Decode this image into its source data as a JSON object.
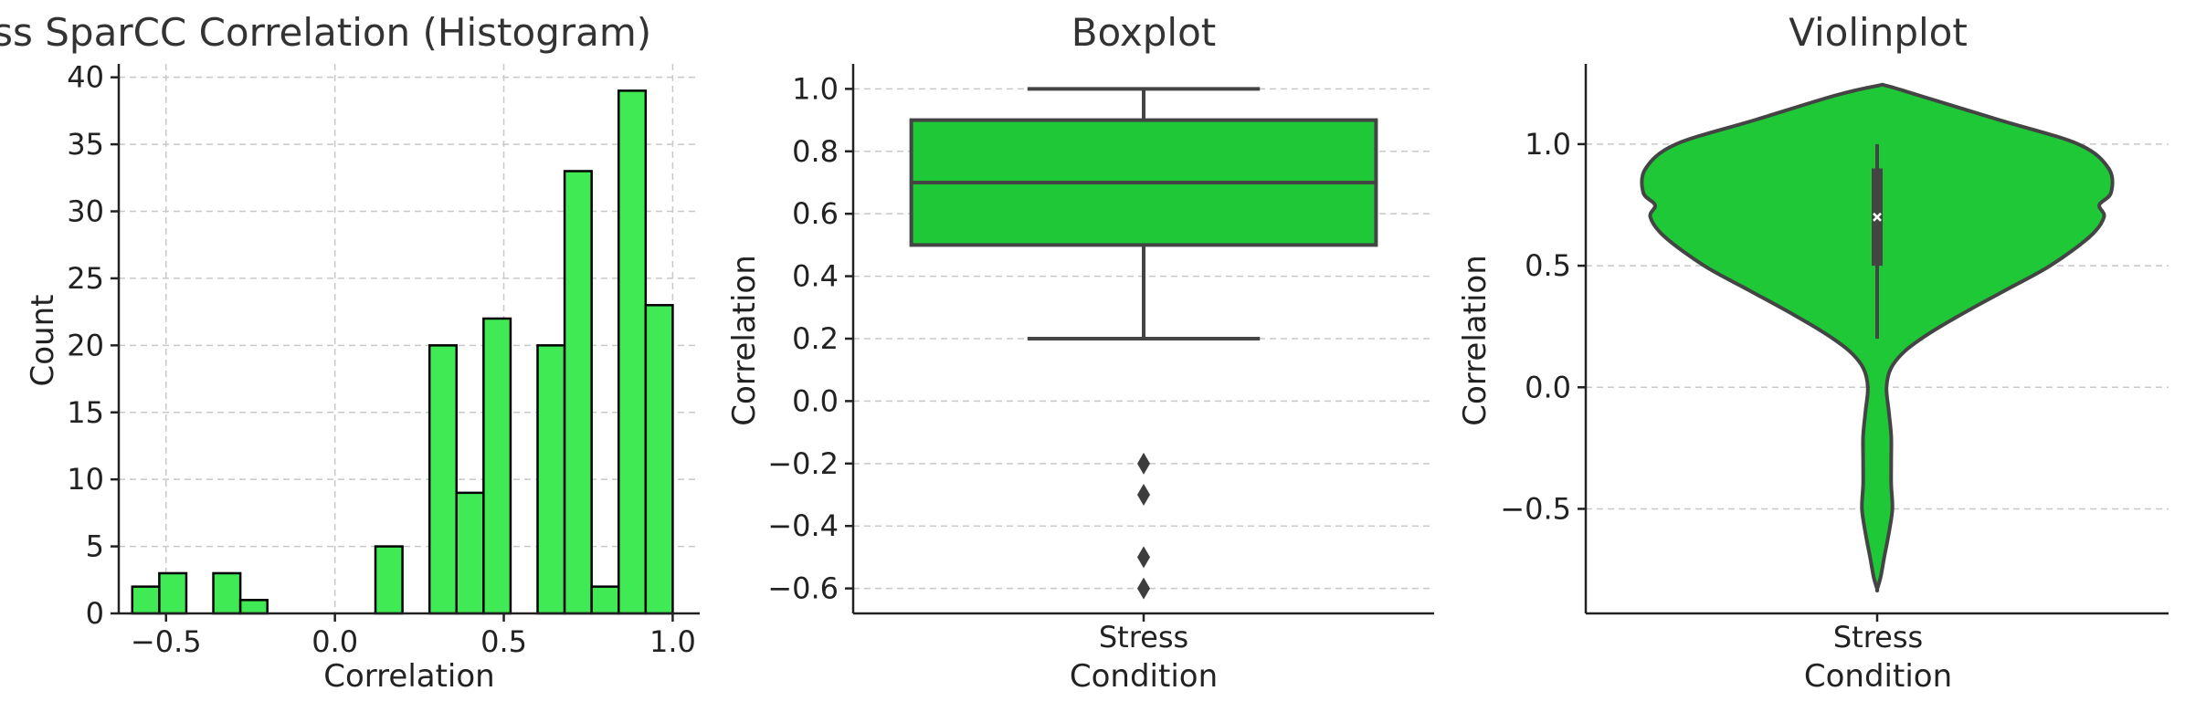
{
  "colors": {
    "hist_fill": "#40EA55",
    "box_fill": "#1EC837",
    "edge": "#444444",
    "outlier": "#3d3d3d",
    "median_marker": "#ffffff"
  },
  "chart_data": [
    {
      "type": "bar",
      "title": "Stress SparCC Correlation (Histogram)",
      "xlabel": "Correlation",
      "ylabel": "Count",
      "xlim": [
        -0.64,
        1.08
      ],
      "ylim": [
        0,
        41
      ],
      "xticks": [
        -0.5,
        0.0,
        0.5,
        1.0
      ],
      "xtick_labels": [
        "−0.5",
        "0.0",
        "0.5",
        "1.0"
      ],
      "yticks": [
        0,
        5,
        10,
        15,
        20,
        25,
        30,
        35,
        40
      ],
      "yticks_labels": [
        "0",
        "5",
        "10",
        "15",
        "20",
        "25",
        "30",
        "35",
        "40"
      ],
      "bin_width": 0.08,
      "bins": [
        {
          "x0": -0.6,
          "count": 2
        },
        {
          "x0": -0.52,
          "count": 3
        },
        {
          "x0": -0.44,
          "count": 0
        },
        {
          "x0": -0.36,
          "count": 3
        },
        {
          "x0": -0.28,
          "count": 1
        },
        {
          "x0": -0.2,
          "count": 0
        },
        {
          "x0": -0.12,
          "count": 0
        },
        {
          "x0": -0.04,
          "count": 0
        },
        {
          "x0": 0.04,
          "count": 0
        },
        {
          "x0": 0.12,
          "count": 5
        },
        {
          "x0": 0.2,
          "count": 0
        },
        {
          "x0": 0.28,
          "count": 20
        },
        {
          "x0": 0.36,
          "count": 9
        },
        {
          "x0": 0.44,
          "count": 22
        },
        {
          "x0": 0.52,
          "count": 0
        },
        {
          "x0": 0.6,
          "count": 20
        },
        {
          "x0": 0.68,
          "count": 33
        },
        {
          "x0": 0.76,
          "count": 2
        },
        {
          "x0": 0.84,
          "count": 39
        },
        {
          "x0": 0.92,
          "count": 23
        }
      ],
      "grid": true
    },
    {
      "type": "box",
      "title": "Boxplot",
      "xlabel": "Condition",
      "ylabel": "Correlation",
      "category": "Stress",
      "ylim": [
        -0.68,
        1.08
      ],
      "yticks": [
        -0.6,
        -0.4,
        -0.2,
        0.0,
        0.2,
        0.4,
        0.6,
        0.8,
        1.0
      ],
      "ytick_labels": [
        "−0.6",
        "−0.4",
        "−0.2",
        "0.0",
        "0.2",
        "0.4",
        "0.6",
        "0.8",
        "1.0"
      ],
      "whisker_low": 0.2,
      "q1": 0.5,
      "median": 0.7,
      "q3": 0.9,
      "whisker_high": 1.0,
      "outliers": [
        -0.2,
        -0.3,
        -0.5,
        -0.6
      ],
      "grid": true
    },
    {
      "type": "violin",
      "title": "Violinplot",
      "xlabel": "Condition",
      "ylabel": "Correlation",
      "category": "Stress",
      "ylim": [
        -0.93,
        1.33
      ],
      "yticks": [
        -0.5,
        0.0,
        0.5,
        1.0
      ],
      "ytick_labels": [
        "−0.5",
        "0.0",
        "0.5",
        "1.0"
      ],
      "density_profile": [
        {
          "y": 1.24,
          "w": 0.04
        },
        {
          "y": 1.2,
          "w": 0.18
        },
        {
          "y": 1.1,
          "w": 0.52
        },
        {
          "y": 1.0,
          "w": 0.86
        },
        {
          "y": 0.9,
          "w": 0.99
        },
        {
          "y": 0.8,
          "w": 1.0
        },
        {
          "y": 0.75,
          "w": 0.95
        },
        {
          "y": 0.7,
          "w": 0.97
        },
        {
          "y": 0.62,
          "w": 0.91
        },
        {
          "y": 0.5,
          "w": 0.74
        },
        {
          "y": 0.4,
          "w": 0.55
        },
        {
          "y": 0.3,
          "w": 0.36
        },
        {
          "y": 0.22,
          "w": 0.22
        },
        {
          "y": 0.15,
          "w": 0.12
        },
        {
          "y": 0.08,
          "w": 0.06
        },
        {
          "y": 0.0,
          "w": 0.04
        },
        {
          "y": -0.1,
          "w": 0.05
        },
        {
          "y": -0.2,
          "w": 0.06
        },
        {
          "y": -0.3,
          "w": 0.06
        },
        {
          "y": -0.4,
          "w": 0.06
        },
        {
          "y": -0.5,
          "w": 0.065
        },
        {
          "y": -0.6,
          "w": 0.05
        },
        {
          "y": -0.7,
          "w": 0.03
        },
        {
          "y": -0.78,
          "w": 0.015
        },
        {
          "y": -0.83,
          "w": 0.0
        }
      ],
      "whisker_low": 0.2,
      "q1": 0.5,
      "median": 0.7,
      "q3": 0.9,
      "whisker_high": 1.0,
      "grid": true
    }
  ]
}
